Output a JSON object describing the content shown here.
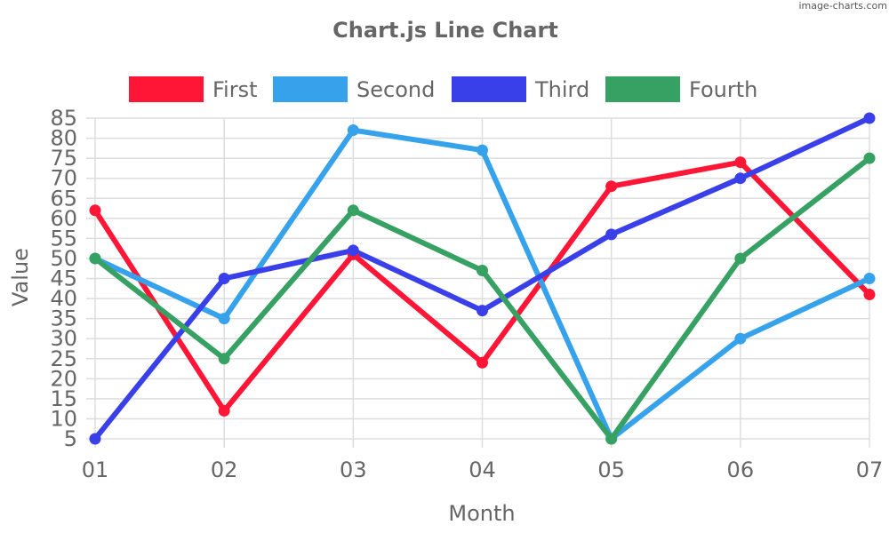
{
  "watermark": "image-charts.com",
  "chart_data": {
    "type": "line",
    "title": "Chart.js Line Chart",
    "xlabel": "Month",
    "ylabel": "Value",
    "categories": [
      "01",
      "02",
      "03",
      "04",
      "05",
      "06",
      "07"
    ],
    "ylim": [
      5,
      85
    ],
    "yticks": [
      5,
      10,
      15,
      20,
      25,
      30,
      35,
      40,
      45,
      50,
      55,
      60,
      65,
      70,
      75,
      80,
      85
    ],
    "grid": true,
    "legend_position": "top",
    "series": [
      {
        "name": "First",
        "color": "#ff1636",
        "values": [
          62,
          12,
          51,
          24,
          68,
          74,
          41
        ]
      },
      {
        "name": "Second",
        "color": "#36a2eb",
        "values": [
          50,
          35,
          82,
          77,
          5,
          30,
          45
        ]
      },
      {
        "name": "Third",
        "color": "#3a40e9",
        "values": [
          5,
          45,
          52,
          37,
          56,
          70,
          85
        ]
      },
      {
        "name": "Fourth",
        "color": "#36a163",
        "values": [
          50,
          25,
          62,
          47,
          5,
          50,
          75
        ]
      }
    ]
  }
}
